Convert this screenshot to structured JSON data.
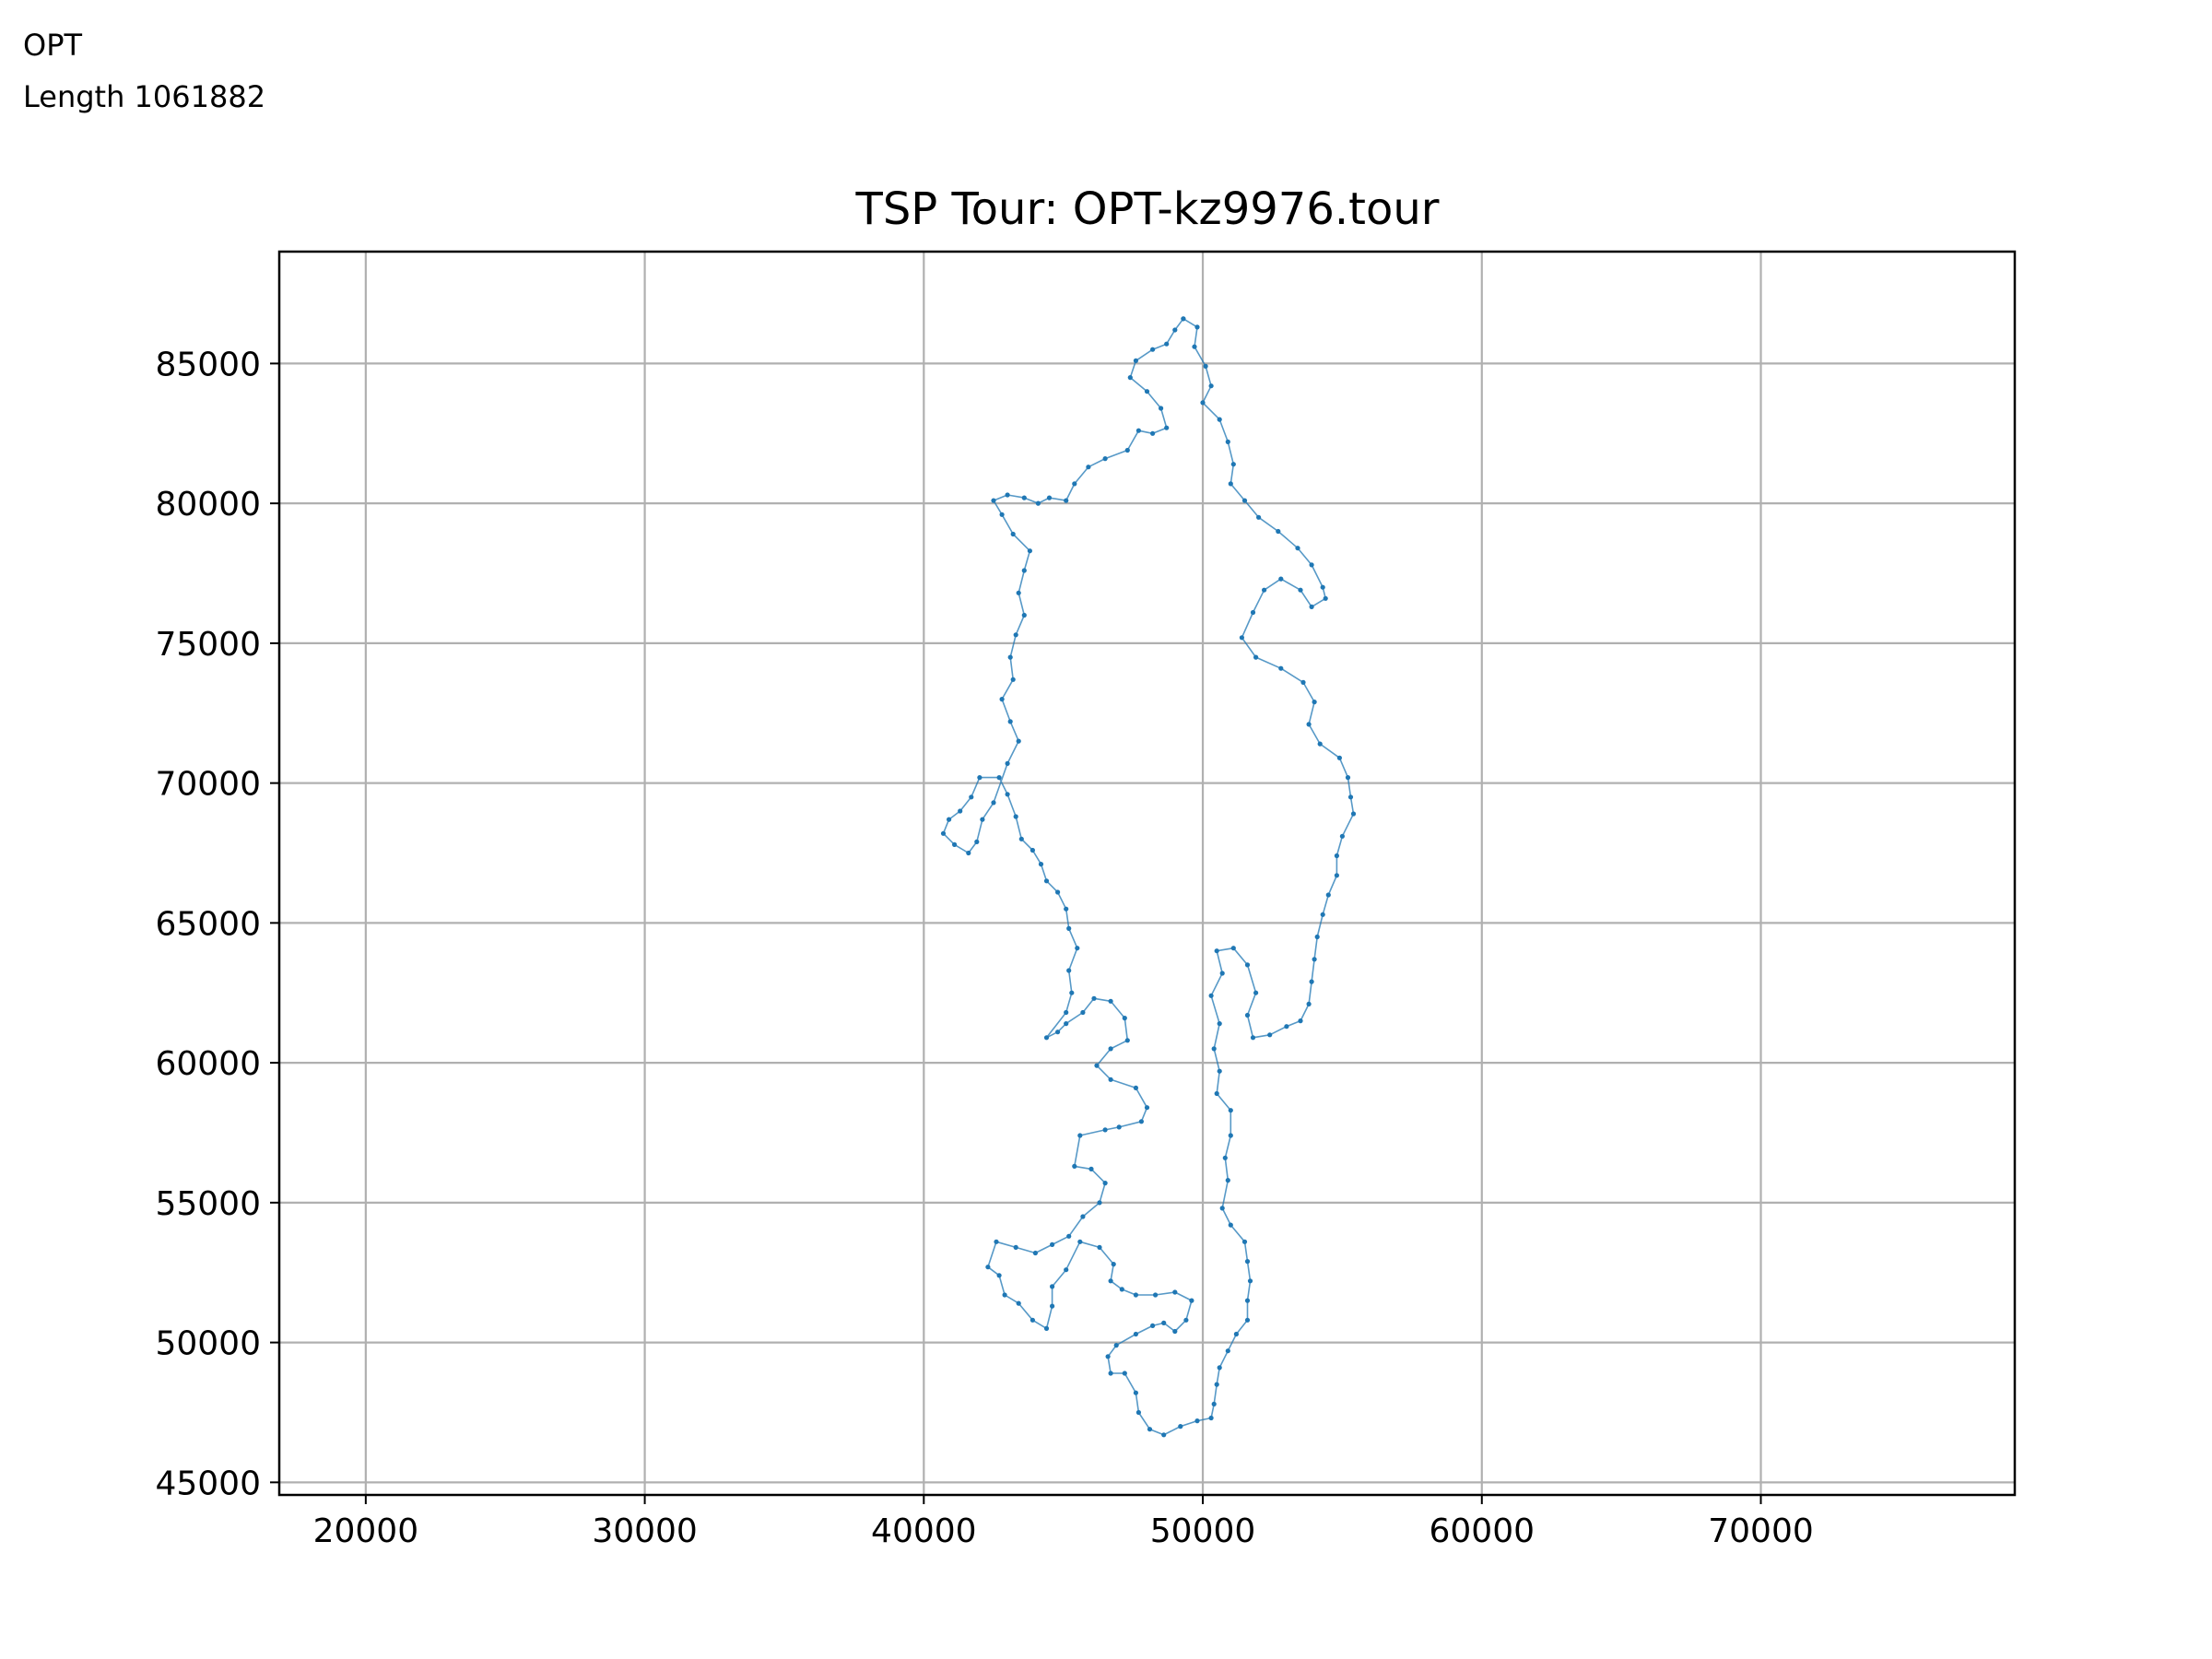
{
  "annotations": {
    "line1": "OPT",
    "line2": "Length 1061882"
  },
  "chart_data": {
    "type": "line",
    "title": "TSP Tour: OPT-kz9976.tour",
    "xlabel": "",
    "ylabel": "",
    "xlim": [
      16900,
      79100
    ],
    "ylim": [
      44550,
      89000
    ],
    "grid": true,
    "line_color": "#1f77b4",
    "xticks": [
      20000,
      30000,
      40000,
      50000,
      60000,
      70000
    ],
    "yticks": [
      45000,
      50000,
      55000,
      60000,
      65000,
      70000,
      75000,
      80000,
      85000
    ],
    "series": [
      {
        "values": [
          [
            49300,
            86600
          ],
          [
            49800,
            86300
          ],
          [
            49700,
            85600
          ],
          [
            50100,
            84900
          ],
          [
            50300,
            84200
          ],
          [
            50000,
            83600
          ],
          [
            50600,
            83000
          ],
          [
            50900,
            82200
          ],
          [
            51100,
            81400
          ],
          [
            51000,
            80700
          ],
          [
            51500,
            80100
          ],
          [
            52000,
            79500
          ],
          [
            52700,
            79000
          ],
          [
            53400,
            78400
          ],
          [
            53900,
            77800
          ],
          [
            54300,
            77000
          ],
          [
            54400,
            76600
          ],
          [
            53900,
            76300
          ],
          [
            53500,
            76900
          ],
          [
            52800,
            77300
          ],
          [
            52200,
            76900
          ],
          [
            51800,
            76100
          ],
          [
            51400,
            75200
          ],
          [
            51900,
            74500
          ],
          [
            52800,
            74100
          ],
          [
            53600,
            73600
          ],
          [
            54000,
            72900
          ],
          [
            53800,
            72100
          ],
          [
            54200,
            71400
          ],
          [
            54900,
            70900
          ],
          [
            55200,
            70200
          ],
          [
            55300,
            69500
          ],
          [
            55400,
            68900
          ],
          [
            55000,
            68100
          ],
          [
            54800,
            67400
          ],
          [
            54800,
            66700
          ],
          [
            54500,
            66000
          ],
          [
            54300,
            65300
          ],
          [
            54100,
            64500
          ],
          [
            54000,
            63700
          ],
          [
            53900,
            62900
          ],
          [
            53800,
            62100
          ],
          [
            53500,
            61500
          ],
          [
            53000,
            61300
          ],
          [
            52400,
            61000
          ],
          [
            51800,
            60900
          ],
          [
            51600,
            61700
          ],
          [
            51900,
            62500
          ],
          [
            51600,
            63500
          ],
          [
            51100,
            64100
          ],
          [
            50500,
            64000
          ],
          [
            50700,
            63200
          ],
          [
            50300,
            62400
          ],
          [
            50600,
            61400
          ],
          [
            50400,
            60500
          ],
          [
            50600,
            59700
          ],
          [
            50500,
            58900
          ],
          [
            51000,
            58300
          ],
          [
            51000,
            57400
          ],
          [
            50800,
            56600
          ],
          [
            50900,
            55800
          ],
          [
            50700,
            54800
          ],
          [
            51000,
            54200
          ],
          [
            51500,
            53600
          ],
          [
            51600,
            52900
          ],
          [
            51700,
            52200
          ],
          [
            51600,
            51500
          ],
          [
            51600,
            50800
          ],
          [
            51200,
            50300
          ],
          [
            50900,
            49700
          ],
          [
            50600,
            49100
          ],
          [
            50500,
            48500
          ],
          [
            50400,
            47800
          ],
          [
            50300,
            47300
          ],
          [
            49800,
            47200
          ],
          [
            49200,
            47000
          ],
          [
            48600,
            46700
          ],
          [
            48100,
            46900
          ],
          [
            47700,
            47500
          ],
          [
            47600,
            48200
          ],
          [
            47200,
            48900
          ],
          [
            46700,
            48900
          ],
          [
            46600,
            49500
          ],
          [
            46900,
            49900
          ],
          [
            47600,
            50300
          ],
          [
            48200,
            50600
          ],
          [
            48600,
            50700
          ],
          [
            49000,
            50400
          ],
          [
            49400,
            50800
          ],
          [
            49600,
            51500
          ],
          [
            49000,
            51800
          ],
          [
            48300,
            51700
          ],
          [
            47600,
            51700
          ],
          [
            47100,
            51900
          ],
          [
            46700,
            52200
          ],
          [
            46800,
            52800
          ],
          [
            46300,
            53400
          ],
          [
            45600,
            53600
          ],
          [
            45100,
            52600
          ],
          [
            44600,
            52000
          ],
          [
            44600,
            51300
          ],
          [
            44400,
            50500
          ],
          [
            43900,
            50800
          ],
          [
            43400,
            51400
          ],
          [
            42900,
            51700
          ],
          [
            42700,
            52400
          ],
          [
            42300,
            52700
          ],
          [
            42600,
            53600
          ],
          [
            43300,
            53400
          ],
          [
            44000,
            53200
          ],
          [
            44600,
            53500
          ],
          [
            45200,
            53800
          ],
          [
            45700,
            54500
          ],
          [
            46300,
            55000
          ],
          [
            46500,
            55700
          ],
          [
            46000,
            56200
          ],
          [
            45400,
            56300
          ],
          [
            45600,
            57400
          ],
          [
            46500,
            57600
          ],
          [
            47000,
            57700
          ],
          [
            47800,
            57900
          ],
          [
            48000,
            58400
          ],
          [
            47600,
            59100
          ],
          [
            46700,
            59400
          ],
          [
            46200,
            59900
          ],
          [
            46700,
            60500
          ],
          [
            47300,
            60800
          ],
          [
            47200,
            61600
          ],
          [
            46700,
            62200
          ],
          [
            46100,
            62300
          ],
          [
            45700,
            61800
          ],
          [
            45100,
            61400
          ],
          [
            44800,
            61100
          ],
          [
            44400,
            60900
          ],
          [
            45100,
            61800
          ],
          [
            45300,
            62500
          ],
          [
            45200,
            63300
          ],
          [
            45500,
            64100
          ],
          [
            45200,
            64800
          ],
          [
            45100,
            65500
          ],
          [
            44800,
            66100
          ],
          [
            44400,
            66500
          ],
          [
            44200,
            67100
          ],
          [
            43900,
            67600
          ],
          [
            43500,
            68000
          ],
          [
            43300,
            68800
          ],
          [
            43000,
            69600
          ],
          [
            42700,
            70200
          ],
          [
            42000,
            70200
          ],
          [
            41700,
            69500
          ],
          [
            41300,
            69000
          ],
          [
            40900,
            68700
          ],
          [
            40700,
            68200
          ],
          [
            41100,
            67800
          ],
          [
            41600,
            67500
          ],
          [
            41900,
            67900
          ],
          [
            42100,
            68700
          ],
          [
            42500,
            69300
          ],
          [
            43000,
            70700
          ],
          [
            43400,
            71500
          ],
          [
            43100,
            72200
          ],
          [
            42800,
            73000
          ],
          [
            43200,
            73700
          ],
          [
            43100,
            74500
          ],
          [
            43300,
            75300
          ],
          [
            43600,
            76000
          ],
          [
            43400,
            76800
          ],
          [
            43600,
            77600
          ],
          [
            43800,
            78300
          ],
          [
            43200,
            78900
          ],
          [
            42800,
            79600
          ],
          [
            42500,
            80100
          ],
          [
            43000,
            80300
          ],
          [
            43600,
            80200
          ],
          [
            44100,
            80000
          ],
          [
            44500,
            80200
          ],
          [
            45100,
            80100
          ],
          [
            45400,
            80700
          ],
          [
            45900,
            81300
          ],
          [
            46500,
            81600
          ],
          [
            47300,
            81900
          ],
          [
            47700,
            82600
          ],
          [
            48200,
            82500
          ],
          [
            48700,
            82700
          ],
          [
            48500,
            83400
          ],
          [
            48000,
            84000
          ],
          [
            47400,
            84500
          ],
          [
            47600,
            85100
          ],
          [
            48200,
            85500
          ],
          [
            48700,
            85700
          ],
          [
            49000,
            86200
          ],
          [
            49300,
            86600
          ]
        ]
      }
    ]
  }
}
